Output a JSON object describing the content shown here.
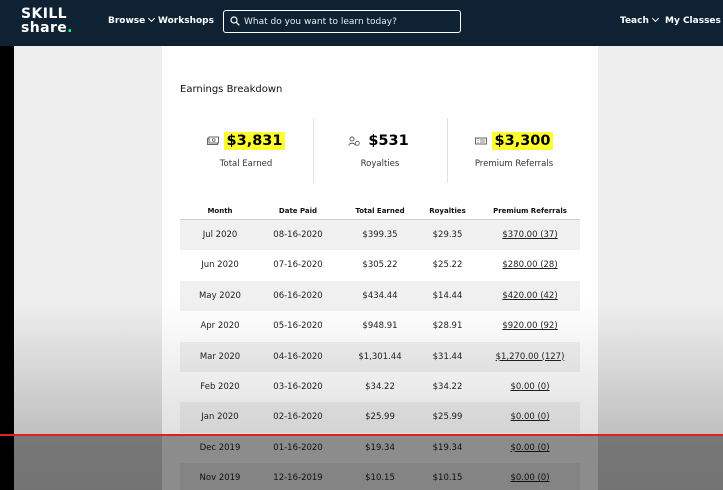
{
  "nav": {
    "logo_line1": "SKILL",
    "logo_line2": "share",
    "logo_dot": ".",
    "browse": "Browse",
    "workshops": "Workshops",
    "search_placeholder": "What do you want to learn today?",
    "teach": "Teach",
    "my_classes": "My Classes"
  },
  "earnings": {
    "title": "Earnings Breakdown",
    "stats": [
      {
        "value": "$3,831",
        "label": "Total Earned",
        "icon": "cash-icon",
        "highlighted": true
      },
      {
        "value": "$531",
        "label": "Royalties",
        "icon": "person-dollar-icon",
        "highlighted": false
      },
      {
        "value": "$3,300",
        "label": "Premium Referrals",
        "icon": "ticket-icon",
        "highlighted": true
      }
    ],
    "highlight_color": "#ffff2d"
  },
  "table": {
    "columns": [
      "Month",
      "Date Paid",
      "Total Earned",
      "Royalties",
      "Premium Referrals"
    ],
    "rows": [
      {
        "month": "Jul 2020",
        "date_paid": "08-16-2020",
        "total": "$399.35",
        "royalties": "$29.35",
        "referrals": "$370.00 (37)"
      },
      {
        "month": "Jun 2020",
        "date_paid": "07-16-2020",
        "total": "$305.22",
        "royalties": "$25.22",
        "referrals": "$280.00 (28)"
      },
      {
        "month": "May 2020",
        "date_paid": "06-16-2020",
        "total": "$434.44",
        "royalties": "$14.44",
        "referrals": "$420.00 (42)"
      },
      {
        "month": "Apr 2020",
        "date_paid": "05-16-2020",
        "total": "$948.91",
        "royalties": "$28.91",
        "referrals": "$920.00 (92)"
      },
      {
        "month": "Mar 2020",
        "date_paid": "04-16-2020",
        "total": "$1,301.44",
        "royalties": "$31.44",
        "referrals": "$1,270.00 (127)"
      },
      {
        "month": "Feb 2020",
        "date_paid": "03-16-2020",
        "total": "$34.22",
        "royalties": "$34.22",
        "referrals": "$0.00 (0)"
      },
      {
        "month": "Jan 2020",
        "date_paid": "02-16-2020",
        "total": "$25.99",
        "royalties": "$25.99",
        "referrals": "$0.00 (0)"
      },
      {
        "month": "Dec 2019",
        "date_paid": "01-16-2020",
        "total": "$19.34",
        "royalties": "$19.34",
        "referrals": "$0.00 (0)"
      },
      {
        "month": "Nov 2019",
        "date_paid": "12-16-2019",
        "total": "$10.15",
        "royalties": "$10.15",
        "referrals": "$0.00 (0)"
      }
    ]
  },
  "colors": {
    "nav_bg": "#0f2233",
    "brand_green": "#00ff84",
    "annotation_red": "#e02020"
  }
}
